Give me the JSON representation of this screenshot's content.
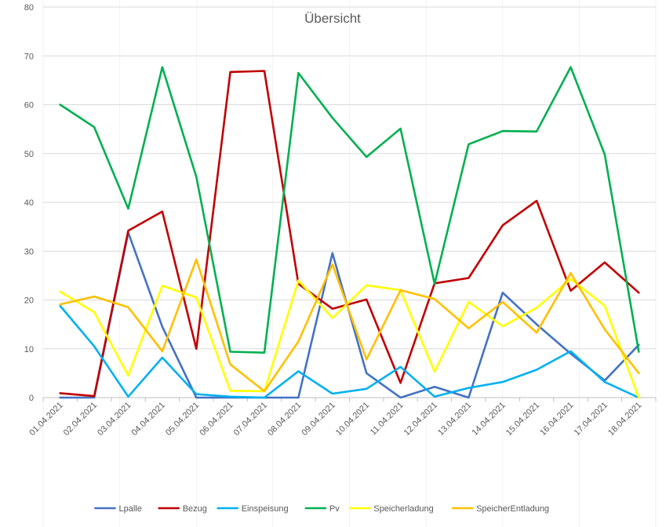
{
  "chart_data": {
    "type": "line",
    "title": "Übersicht",
    "xlabel": "",
    "ylabel": "",
    "ylim": [
      0,
      80
    ],
    "yticks": [
      0,
      10,
      20,
      30,
      40,
      50,
      60,
      70,
      80
    ],
    "grid": true,
    "legend_position": "bottom",
    "categories": [
      "01.04.2021",
      "02.04.2021",
      "03.04.2021",
      "04.04.2021",
      "05.04.2021",
      "06.04.2021",
      "07.04.2021",
      "08.04.2021",
      "09.04.2021",
      "10.04.2021",
      "11.04.2021",
      "12.04.2021",
      "13.04.2021",
      "14.04.2021",
      "15.04.2021",
      "16.04.2021",
      "17.04.2021",
      "18.04.2021"
    ],
    "series": [
      {
        "name": "Lpalle",
        "color": "#4472c4",
        "values": [
          0,
          0,
          33.8,
          14.5,
          0,
          0,
          0,
          0,
          29.6,
          5.0,
          0,
          2.2,
          0,
          21.5,
          15.0,
          9.0,
          3.5,
          10.8
        ]
      },
      {
        "name": "Bezug",
        "color": "#c00000",
        "values": [
          0.9,
          0.3,
          34.2,
          38.1,
          10.0,
          66.7,
          66.9,
          23.3,
          18.2,
          20.1,
          3.0,
          23.4,
          24.5,
          35.3,
          40.3,
          21.9,
          27.7,
          21.5
        ]
      },
      {
        "name": "Einspeisung",
        "color": "#00b0f0",
        "values": [
          18.8,
          10.5,
          0.2,
          8.2,
          0.7,
          0.2,
          0,
          5.4,
          0.8,
          1.8,
          6.3,
          0.2,
          2.0,
          3.2,
          5.7,
          9.5,
          3.2,
          0
        ]
      },
      {
        "name": "Pv",
        "color": "#00b050",
        "values": [
          60.0,
          55.4,
          38.7,
          67.7,
          45.2,
          9.4,
          9.2,
          66.5,
          57.3,
          49.3,
          55.1,
          23.3,
          51.9,
          54.6,
          54.5,
          67.7,
          49.8,
          9.4
        ]
      },
      {
        "name": "Speicherladung",
        "color": "#ffff00",
        "values": [
          21.7,
          17.5,
          4.5,
          22.9,
          20.5,
          1.4,
          1.3,
          24.0,
          16.3,
          23.0,
          22.0,
          5.3,
          19.6,
          14.6,
          18.4,
          24.3,
          18.8,
          0
        ]
      },
      {
        "name": "SpeicherEntladung",
        "color": "#ffc000",
        "values": [
          19.1,
          20.7,
          18.5,
          9.5,
          28.3,
          6.8,
          1.3,
          11.5,
          27.3,
          7.8,
          22.0,
          20.2,
          14.2,
          19.6,
          13.3,
          25.5,
          14.0,
          5.0
        ]
      }
    ]
  }
}
